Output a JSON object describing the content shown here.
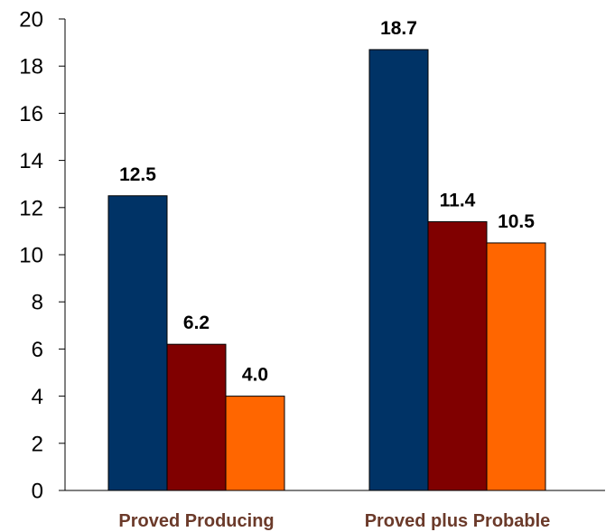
{
  "chart_data": {
    "type": "bar",
    "categories": [
      "Proved Producing",
      "Proved plus Probable"
    ],
    "series": [
      {
        "values": [
          12.5,
          18.7
        ],
        "color": "#003366"
      },
      {
        "values": [
          6.2,
          11.4
        ],
        "color": "#800000"
      },
      {
        "values": [
          4.0,
          10.5
        ],
        "color": "#FF6600"
      }
    ],
    "data_labels": [
      [
        "12.5",
        "18.7"
      ],
      [
        "6.2",
        "11.4"
      ],
      [
        "4.0",
        "10.5"
      ]
    ],
    "y_ticks": [
      "0",
      "2",
      "4",
      "6",
      "8",
      "10",
      "12",
      "14",
      "16",
      "18",
      "20"
    ],
    "ylim": [
      0,
      20
    ],
    "grid": false,
    "legend": "none",
    "category_label_color": "#6B3A2A"
  }
}
